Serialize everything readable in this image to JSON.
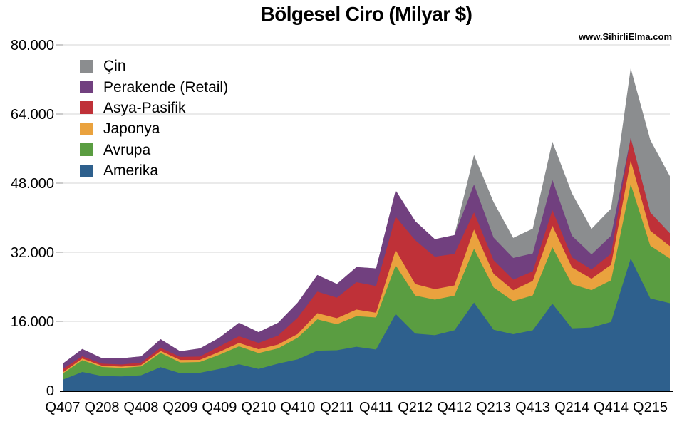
{
  "title": "Bölgesel Ciro (Milyar $)",
  "watermark": "www.SihirliElma.com",
  "chart_data": {
    "type": "area",
    "stacked": true,
    "title": "Bölgesel Ciro (Milyar $)",
    "unit": "milyon $ (eksen: Milyar $ olarak binlik ayraçla)",
    "grid": true,
    "legend_position": "top-left",
    "ylim": [
      0,
      80000
    ],
    "y_ticks": [
      0,
      16000,
      32000,
      48000,
      64000,
      80000
    ],
    "y_tick_labels": [
      "0",
      "16.000",
      "32.000",
      "48.000",
      "64.000",
      "80.000"
    ],
    "x": [
      "Q407",
      "Q108",
      "Q208",
      "Q308",
      "Q408",
      "Q109",
      "Q209",
      "Q309",
      "Q409",
      "Q110",
      "Q210",
      "Q310",
      "Q410",
      "Q111",
      "Q211",
      "Q311",
      "Q411",
      "Q112",
      "Q212",
      "Q312",
      "Q412",
      "Q113",
      "Q213",
      "Q313",
      "Q413",
      "Q114",
      "Q214",
      "Q314",
      "Q414",
      "Q115",
      "Q215",
      "Q315"
    ],
    "x_tick_every": 2,
    "x_tick_labels": [
      "Q407",
      "Q208",
      "Q408",
      "Q209",
      "Q409",
      "Q210",
      "Q410",
      "Q211",
      "Q411",
      "Q212",
      "Q412",
      "Q213",
      "Q413",
      "Q214",
      "Q414",
      "Q215"
    ],
    "series": [
      {
        "name": "Amerika",
        "color": "#2E608D",
        "values": [
          2493,
          4298,
          3352,
          3251,
          3528,
          5400,
          4000,
          4100,
          5000,
          6092,
          4985,
          6227,
          7219,
          9217,
          9323,
          10126,
          9479,
          17714,
          13182,
          12806,
          13941,
          20341,
          14052,
          13025,
          13941,
          20098,
          14400,
          14577,
          15882,
          30566,
          21316,
          20209
        ]
      },
      {
        "name": "Avrupa",
        "color": "#5A9D41",
        "values": [
          1434,
          2712,
          2099,
          1970,
          2042,
          3300,
          2500,
          2500,
          3260,
          4138,
          3667,
          3521,
          5003,
          7256,
          6027,
          7098,
          7419,
          11256,
          8807,
          8235,
          8017,
          12464,
          9800,
          7653,
          8082,
          13073,
          10200,
          8659,
          9623,
          17214,
          12204,
          10342
        ]
      },
      {
        "name": "Japonya",
        "color": "#EAA23E",
        "values": [
          257,
          400,
          302,
          308,
          334,
          450,
          570,
          490,
          690,
          783,
          887,
          910,
          878,
          1433,
          1383,
          1510,
          1096,
          3550,
          2645,
          2416,
          2362,
          4443,
          3135,
          2543,
          3341,
          4948,
          3900,
          2627,
          3615,
          5448,
          3457,
          2872
        ]
      },
      {
        "name": "Asya-Pasifik",
        "color": "#BF3138",
        "values": [
          782,
          497,
          468,
          492,
          554,
          730,
          710,
          760,
          1250,
          1550,
          1482,
          2059,
          3766,
          4987,
          4743,
          6332,
          6192,
          7697,
          10158,
          7517,
          7314,
          3993,
          3162,
          2418,
          2209,
          3631,
          2311,
          2161,
          2554,
          5227,
          4210,
          2952
        ]
      },
      {
        "name": "Perakende (Retail)",
        "color": "#71407F",
        "values": [
          1251,
          1701,
          1291,
          1443,
          1437,
          2000,
          1300,
          1880,
          2010,
          3120,
          2478,
          2983,
          3477,
          3848,
          3191,
          3505,
          4084,
          6116,
          4394,
          4049,
          4332,
          6441,
          5241,
          5043,
          4166,
          7000,
          5000,
          3473,
          4157,
          0,
          0,
          0
        ]
      },
      {
        "name": "Çin",
        "color": "#8B8D8F",
        "values": [
          0,
          0,
          0,
          0,
          0,
          0,
          0,
          0,
          0,
          0,
          0,
          0,
          0,
          0,
          0,
          0,
          0,
          0,
          0,
          0,
          0,
          6830,
          8213,
          4641,
          5733,
          8844,
          9835,
          5935,
          6292,
          16144,
          16823,
          13230
        ]
      }
    ],
    "legend_order_top_to_bottom": [
      "Çin",
      "Perakende (Retail)",
      "Asya-Pasifik",
      "Japonya",
      "Avrupa",
      "Amerika"
    ],
    "colors": {
      "background": "#ffffff",
      "gridline": "#e4e4e4",
      "tick": "#cccccc",
      "axis": "#000000",
      "text": "#000000"
    }
  }
}
